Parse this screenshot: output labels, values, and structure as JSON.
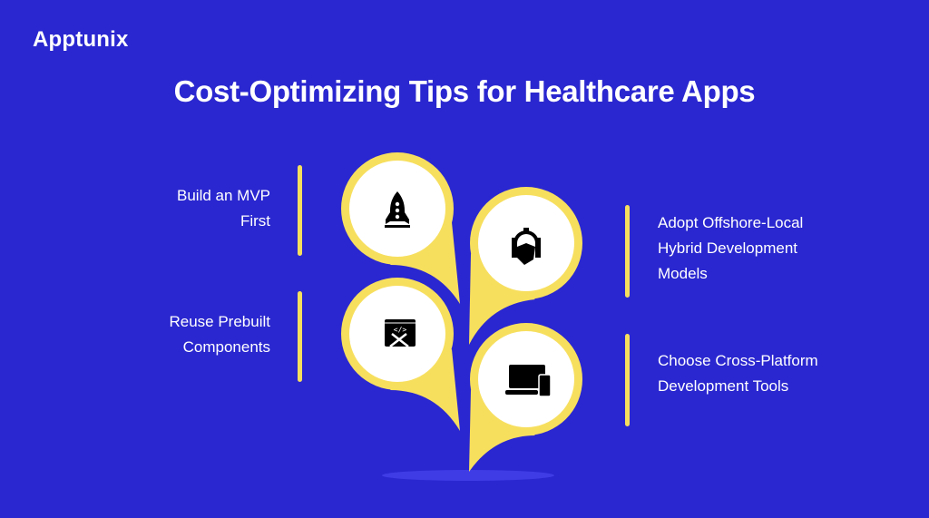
{
  "brand": {
    "logo_text": "Apptunix"
  },
  "title": "Cost-Optimizing Tips for Healthcare Apps",
  "colors": {
    "background": "#2a27d0",
    "accent": "#f7df5e",
    "circle": "#ffffff",
    "icon": "#000000"
  },
  "tips": [
    {
      "lines": [
        "Build an MVP",
        "First"
      ],
      "icon": "rocket-icon"
    },
    {
      "lines": [
        "Adopt Offshore-Local",
        "Hybrid Development",
        "Models"
      ],
      "icon": "handshake-gear-icon"
    },
    {
      "lines": [
        "Reuse Prebuilt",
        "Components"
      ],
      "icon": "code-tools-icon"
    },
    {
      "lines": [
        "Choose Cross-Platform",
        "Development Tools"
      ],
      "icon": "devices-icon"
    }
  ]
}
